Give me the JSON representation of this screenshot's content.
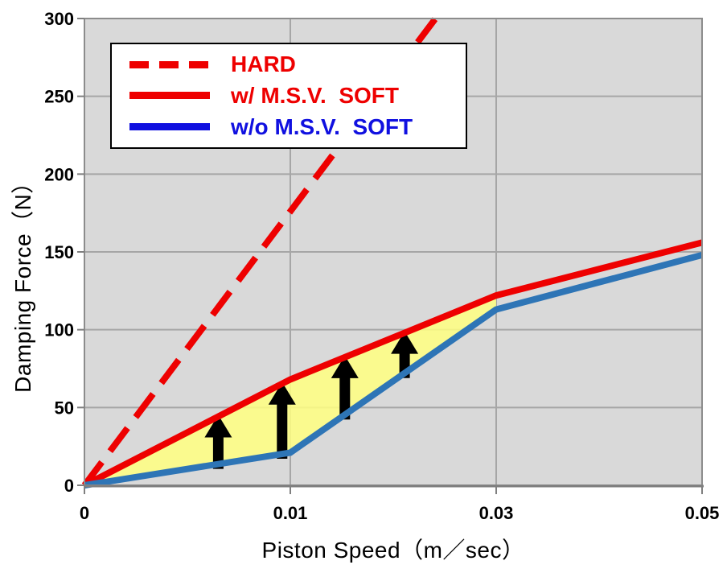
{
  "colors": {
    "red": "#EE0000",
    "line_blue": "#2E75B6",
    "legend_blue": "#1010E0",
    "region_yellow": "#FFFF80",
    "plot_bg": "#D9D9D9",
    "gridline": "#A6A6A6",
    "plot_border": "#8C8C8C",
    "axis_line": "#7F7F7F",
    "arrow_black": "#000000",
    "text_black": "#000000",
    "legend_bg": "#FFFFFF"
  },
  "legend": {
    "items": [
      {
        "label": "HARD",
        "color": "#EE0000",
        "style": "dashed"
      },
      {
        "label": "w/ M.S.V.  SOFT",
        "color": "#EE0000",
        "style": "solid"
      },
      {
        "label": "w/o M.S.V.  SOFT",
        "color": "#1010E0",
        "style": "solid"
      }
    ]
  },
  "chart_data": {
    "type": "line",
    "title": "",
    "xlabel": "Piston Speed（m／sec）",
    "ylabel": "Damping Force（N）",
    "ylim": [
      0,
      300
    ],
    "x_ticks": [
      "0",
      "0.01",
      "0.03",
      "0.05"
    ],
    "x_tick_values": [
      0,
      0.01,
      0.03,
      0.05
    ],
    "y_ticks": [
      "0",
      "50",
      "100",
      "150",
      "200",
      "250",
      "300"
    ],
    "y_tick_values": [
      0,
      50,
      100,
      150,
      200,
      250,
      300
    ],
    "axis_note": "x axis has equal pixel spacing between ticks 0, 0.01, 0.03, 0.05 (category-style spacing); grid on; plot background gray",
    "series": [
      {
        "name": "HARD",
        "color": "#EE0000",
        "style": "dashed",
        "width": 8,
        "points": [
          [
            0,
            0
          ],
          [
            0.01,
            176
          ],
          [
            0.0241,
            300
          ]
        ],
        "note": "straight steep line, clipped at top of plot (300 N) near x=0.024"
      },
      {
        "name": "w/ M.S.V.  SOFT",
        "color": "#EE0000",
        "style": "solid",
        "width": 8,
        "points": [
          [
            0,
            0
          ],
          [
            0.01,
            68
          ],
          [
            0.03,
            122
          ],
          [
            0.05,
            156
          ]
        ]
      },
      {
        "name": "w/o M.S.V.  SOFT",
        "color": "#2E75B6",
        "style": "solid",
        "width": 8,
        "points": [
          [
            0,
            0
          ],
          [
            0.01,
            21
          ],
          [
            0.03,
            113
          ],
          [
            0.05,
            148
          ]
        ]
      }
    ],
    "highlight_region": {
      "between": [
        "w/ M.S.V.  SOFT",
        "w/o M.S.V.  SOFT"
      ],
      "x_range": [
        0,
        0.03
      ],
      "color": "#FFFF80",
      "opacity": 0.85
    },
    "arrows": {
      "direction": "up",
      "color": "#000000",
      "x_values": [
        0.0065,
        0.0096,
        0.0153,
        0.0211
      ],
      "note": "black up arrows from blue curve to red curve inside yellow region"
    },
    "legend_position": "upper-left inside plot"
  }
}
